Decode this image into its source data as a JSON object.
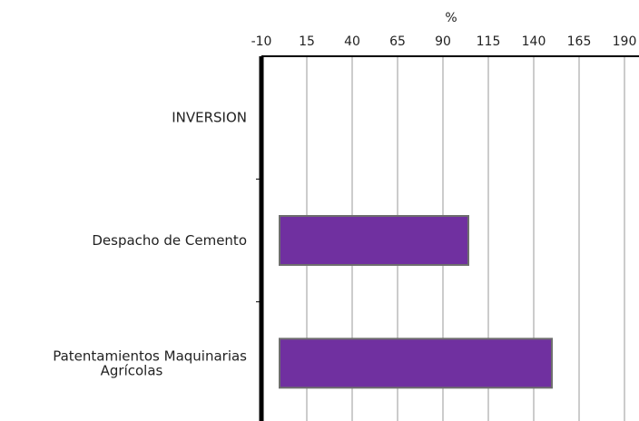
{
  "chart_data": {
    "type": "bar",
    "orientation": "horizontal",
    "xlabel": "%",
    "xlim": [
      -10,
      190
    ],
    "xticks": [
      "-10",
      "15",
      "40",
      "65",
      "90",
      "115",
      "140",
      "165",
      "190"
    ],
    "x_axis_position": "top",
    "grid": true,
    "categories": [
      [
        "INVERSION"
      ],
      [
        "Despacho de Cemento"
      ],
      [
        "Patentamientos Maquinarias",
        "Agrícolas"
      ]
    ],
    "values": [
      null,
      104,
      150
    ],
    "bar_color": "#7030a0"
  }
}
